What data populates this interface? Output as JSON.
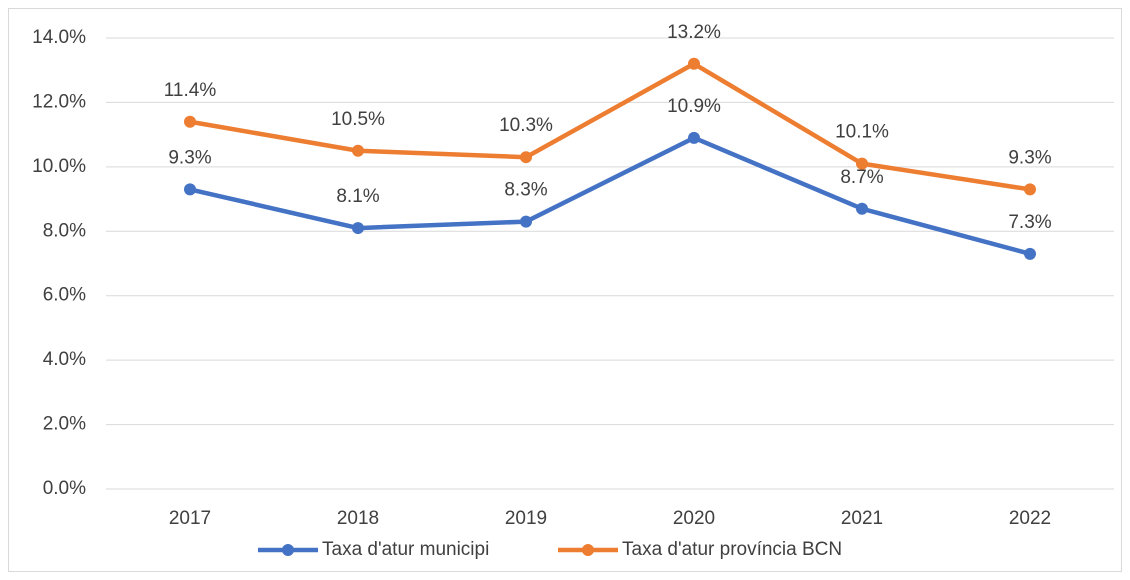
{
  "chart_data": {
    "type": "line",
    "categories": [
      "2017",
      "2018",
      "2019",
      "2020",
      "2021",
      "2022"
    ],
    "series": [
      {
        "name": "Taxa d'atur municipi",
        "color": "#4472c4",
        "values": [
          9.3,
          8.1,
          8.3,
          10.9,
          8.7,
          7.3
        ],
        "value_labels": [
          "9.3%",
          "8.1%",
          "8.3%",
          "10.9%",
          "8.7%",
          "7.3%"
        ]
      },
      {
        "name": "Taxa d'atur província BCN",
        "color": "#ed7d31",
        "values": [
          11.4,
          10.5,
          10.3,
          13.2,
          10.1,
          9.3
        ],
        "value_labels": [
          "11.4%",
          "10.5%",
          "10.3%",
          "13.2%",
          "10.1%",
          "9.3%"
        ]
      }
    ],
    "ylim": [
      0,
      14
    ],
    "yticks": [
      {
        "value": 0,
        "label": "0.0%"
      },
      {
        "value": 2,
        "label": "2.0%"
      },
      {
        "value": 4,
        "label": "4.0%"
      },
      {
        "value": 6,
        "label": "6.0%"
      },
      {
        "value": 8,
        "label": "8.0%"
      },
      {
        "value": 10,
        "label": "10.0%"
      },
      {
        "value": 12,
        "label": "12.0%"
      },
      {
        "value": 14,
        "label": "14.0%"
      }
    ],
    "grid": true,
    "legend": "bottom"
  }
}
